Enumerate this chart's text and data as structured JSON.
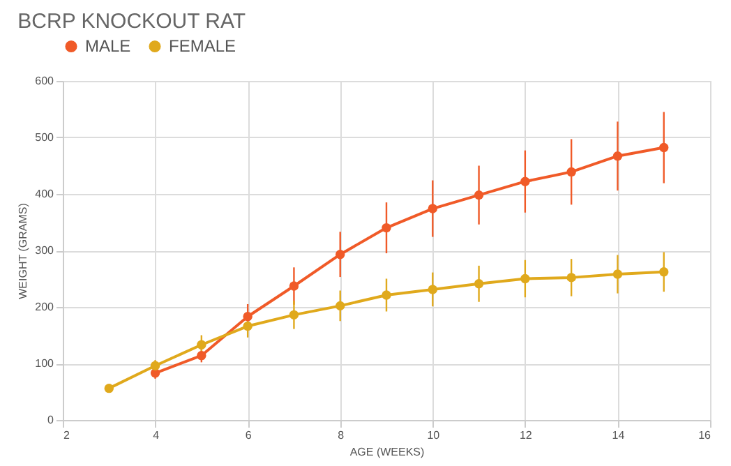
{
  "chart_data": {
    "type": "line",
    "title": "BCRP KNOCKOUT RAT",
    "xlabel": "AGE (WEEKS)",
    "ylabel": "WEIGHT (GRAMS)",
    "xlim": [
      2,
      16
    ],
    "xticks": [
      2,
      4,
      6,
      8,
      10,
      12,
      14,
      16
    ],
    "ylim": [
      0,
      600
    ],
    "yticks": [
      0,
      100,
      200,
      300,
      400,
      500,
      600
    ],
    "grid": true,
    "legend": "top",
    "marker": "circle",
    "line_style": "solid",
    "series": [
      {
        "name": "MALE",
        "color": "#f05a28",
        "x": [
          4,
          5,
          6,
          7,
          8,
          9,
          10,
          11,
          12,
          13,
          14,
          15
        ],
        "values": [
          83,
          114,
          183,
          237,
          293,
          340,
          374,
          398,
          422,
          439,
          467,
          482
        ],
        "errors": [
          10,
          12,
          22,
          33,
          40,
          45,
          50,
          52,
          55,
          58,
          61,
          63
        ]
      },
      {
        "name": "FEMALE",
        "color": "#e0a91c",
        "x": [
          3,
          4,
          5,
          6,
          7,
          8,
          9,
          10,
          11,
          12,
          13,
          14,
          15
        ],
        "values": [
          56,
          96,
          133,
          166,
          186,
          202,
          221,
          231,
          241,
          250,
          252,
          258,
          262
        ],
        "errors": [
          5,
          10,
          17,
          20,
          25,
          27,
          29,
          30,
          32,
          33,
          33,
          34,
          35
        ]
      }
    ]
  }
}
